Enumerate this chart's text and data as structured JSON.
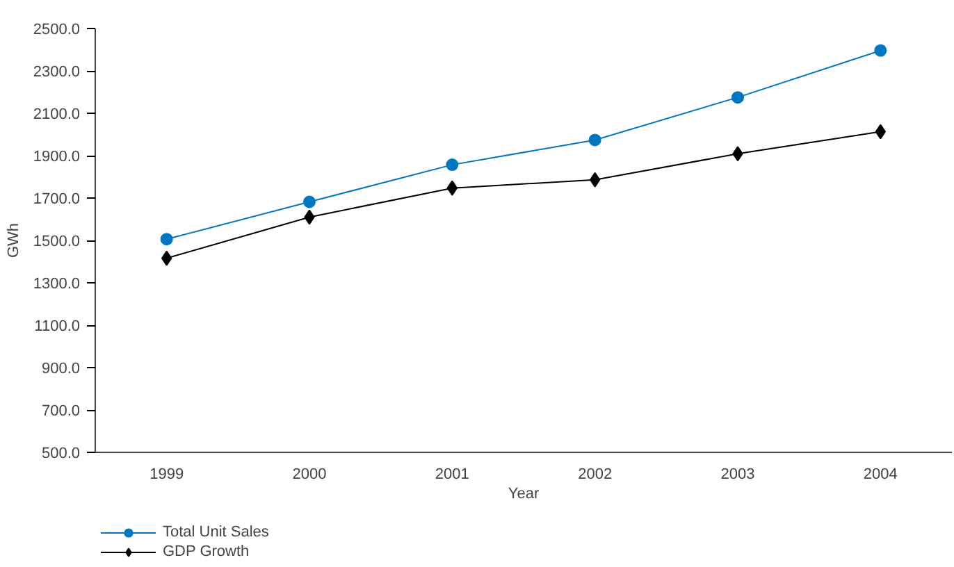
{
  "chart_data": {
    "type": "line",
    "xlabel": "Year",
    "ylabel": "GWh",
    "categories": [
      "1999",
      "2000",
      "2001",
      "2002",
      "2003",
      "2004"
    ],
    "ylim": [
      500,
      2500
    ],
    "yticks": [
      {
        "value": 500,
        "label": "500.0"
      },
      {
        "value": 700,
        "label": "700.0"
      },
      {
        "value": 900,
        "label": "900.0"
      },
      {
        "value": 1100,
        "label": "1100.0"
      },
      {
        "value": 1300,
        "label": "1300.0"
      },
      {
        "value": 1500,
        "label": "1500.0"
      },
      {
        "value": 1700,
        "label": "1700.0"
      },
      {
        "value": 1900,
        "label": "1900.0"
      },
      {
        "value": 2100,
        "label": "2100.0"
      },
      {
        "value": 2300,
        "label": "2300.0"
      },
      {
        "value": 2500,
        "label": "2500.0"
      }
    ],
    "series": [
      {
        "name": "Total Unit Sales",
        "color": "#0077c0",
        "marker": "circle",
        "values": [
          1506,
          1682,
          1857,
          1974,
          2175,
          2396
        ]
      },
      {
        "name": "GDP Growth",
        "color": "#000000",
        "marker": "diamond",
        "values": [
          1416,
          1610,
          1747,
          1786,
          1909,
          2013
        ]
      }
    ],
    "legend": "bottom left"
  }
}
